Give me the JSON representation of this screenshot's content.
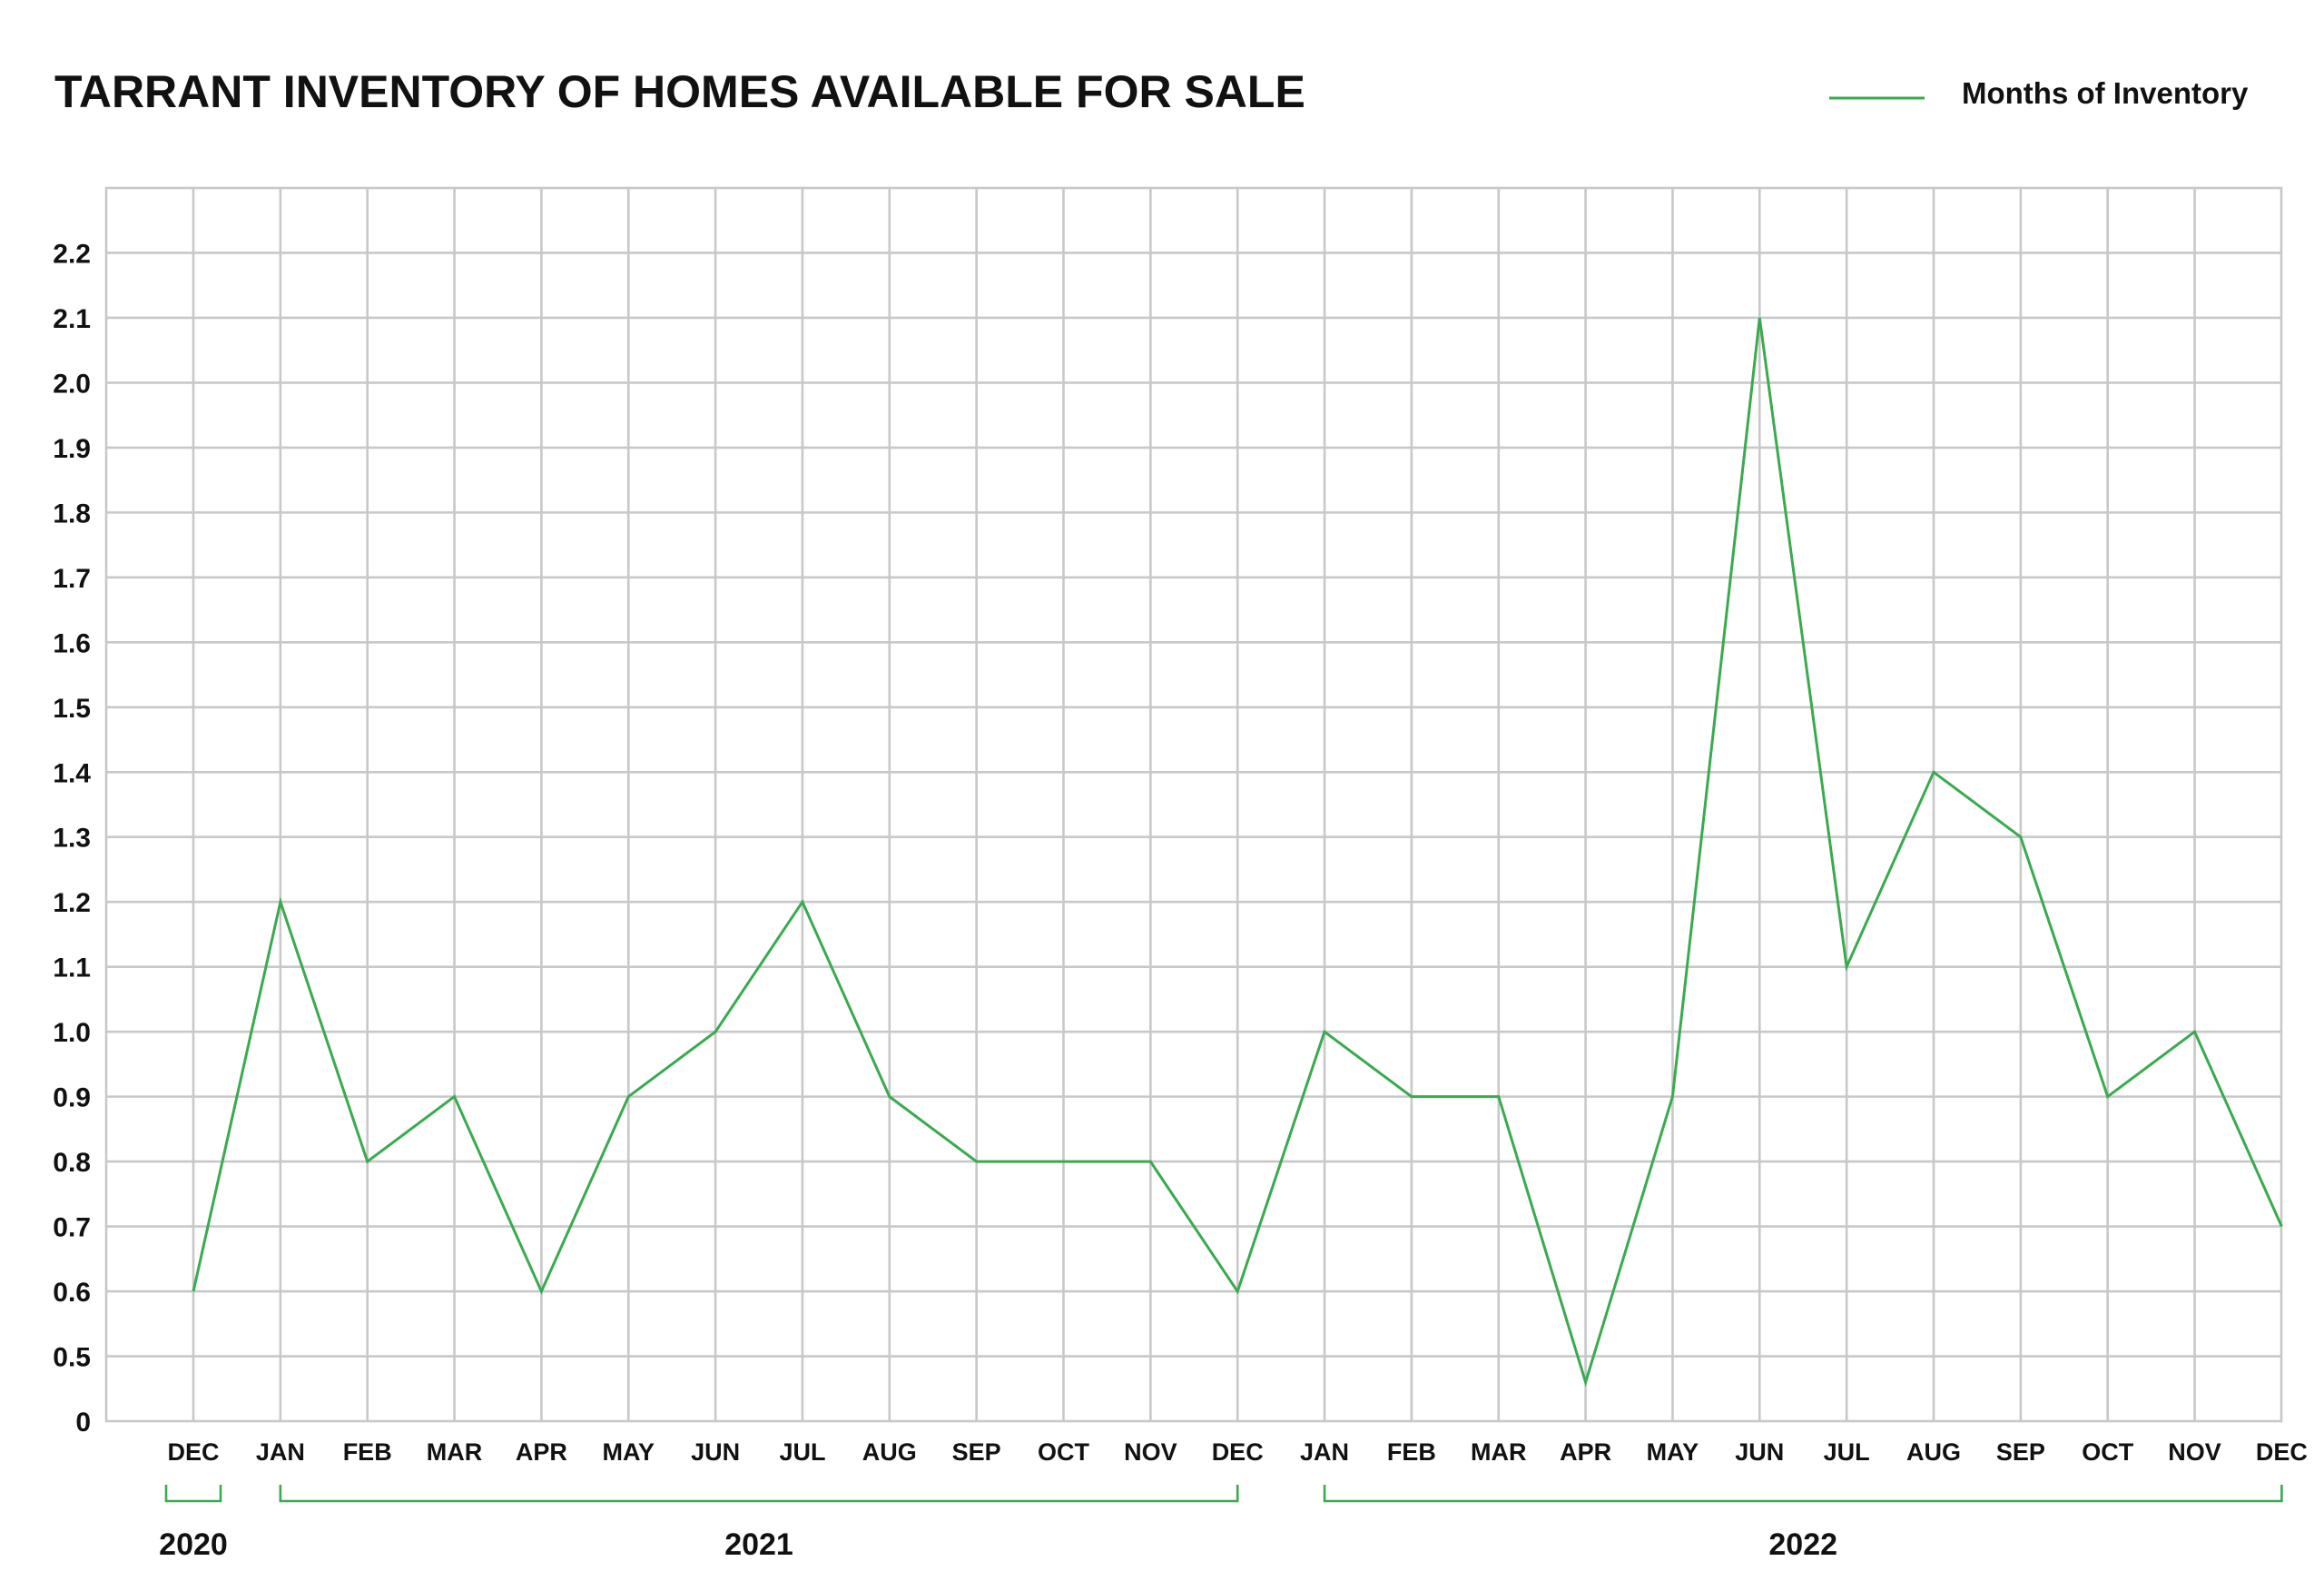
{
  "chart_data": {
    "type": "line",
    "title": "TARRANT INVENTORY OF HOMES AVAILABLE FOR SALE",
    "xlabel": "",
    "ylabel": "",
    "ylim": [
      0.4,
      2.3
    ],
    "y_ticks": [
      {
        "value": 0.4,
        "label": "0"
      },
      {
        "value": 0.5,
        "label": "0.5"
      },
      {
        "value": 0.6,
        "label": "0.6"
      },
      {
        "value": 0.7,
        "label": "0.7"
      },
      {
        "value": 0.8,
        "label": "0.8"
      },
      {
        "value": 0.9,
        "label": "0.9"
      },
      {
        "value": 1.0,
        "label": "1.0"
      },
      {
        "value": 1.1,
        "label": "1.1"
      },
      {
        "value": 1.2,
        "label": "1.2"
      },
      {
        "value": 1.3,
        "label": "1.3"
      },
      {
        "value": 1.4,
        "label": "1.4"
      },
      {
        "value": 1.5,
        "label": "1.5"
      },
      {
        "value": 1.6,
        "label": "1.6"
      },
      {
        "value": 1.7,
        "label": "1.7"
      },
      {
        "value": 1.8,
        "label": "1.8"
      },
      {
        "value": 1.9,
        "label": "1.9"
      },
      {
        "value": 2.0,
        "label": "2.0"
      },
      {
        "value": 2.1,
        "label": "2.1"
      },
      {
        "value": 2.2,
        "label": "2.2"
      }
    ],
    "categories": [
      "DEC",
      "JAN",
      "FEB",
      "MAR",
      "APR",
      "MAY",
      "JUN",
      "JUL",
      "AUG",
      "SEP",
      "OCT",
      "NOV",
      "DEC",
      "JAN",
      "FEB",
      "MAR",
      "APR",
      "MAY",
      "JUN",
      "JUL",
      "AUG",
      "SEP",
      "OCT",
      "NOV",
      "DEC"
    ],
    "year_groups": [
      {
        "label": "2020",
        "start": 0,
        "end": 0
      },
      {
        "label": "2021",
        "start": 1,
        "end": 12
      },
      {
        "label": "2022",
        "start": 13,
        "end": 24
      }
    ],
    "series": [
      {
        "name": "Months of Inventory",
        "color": "#3aaa4f",
        "values": [
          0.6,
          1.2,
          0.8,
          0.9,
          0.6,
          0.9,
          1.0,
          1.2,
          0.9,
          0.8,
          0.8,
          0.8,
          0.6,
          1.0,
          0.9,
          0.9,
          0.46,
          0.9,
          2.1,
          1.1,
          1.4,
          1.3,
          0.9,
          1.0,
          0.7
        ]
      }
    ],
    "legend_position": "top-right",
    "grid": true
  },
  "colors": {
    "series": "#3aaa4f",
    "bracket": "#3aaa4f",
    "grid": "#c8c8c8",
    "text": "#111111",
    "background": "#ffffff"
  }
}
